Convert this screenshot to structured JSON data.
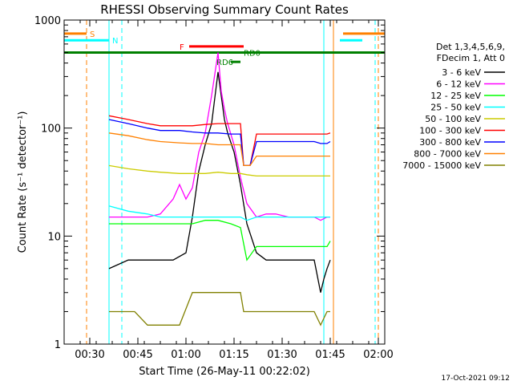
{
  "chart_data": {
    "type": "line",
    "title": "RHESSI Observing Summary Count Rates",
    "xlabel": "Start Time (26-May-11 00:22:02)",
    "ylabel": "Count Rate (s⁻¹ detector⁻¹)",
    "ylog": true,
    "ylim": [
      1,
      1000
    ],
    "xlim_minutes_after_00_22_02": [
      0,
      100
    ],
    "x_ticks": [
      "00:30",
      "00:45",
      "01:00",
      "01:15",
      "01:30",
      "01:45",
      "02:00"
    ],
    "x_tick_minutes": [
      8,
      23,
      38,
      53,
      68,
      83,
      98
    ],
    "y_ticks": [
      "1",
      "10",
      "100",
      "1000"
    ],
    "y_tick_values": [
      1,
      10,
      100,
      1000
    ],
    "legend_header": [
      "Det 1,3,4,5,6,9,",
      "FDecim 1, Att 0"
    ],
    "series": [
      {
        "name": "3 - 6 keV",
        "color": "#000000",
        "x": [
          14,
          20,
          26,
          30,
          34,
          38,
          40,
          42,
          44,
          46,
          48,
          50,
          51,
          53,
          55,
          57,
          60,
          63,
          66,
          70,
          74,
          78,
          80,
          81,
          82,
          83
        ],
        "y": [
          5,
          6,
          6,
          6,
          6,
          7,
          15,
          40,
          70,
          110,
          330,
          120,
          90,
          60,
          30,
          13,
          7,
          6,
          6,
          6,
          6,
          6,
          3,
          4,
          5,
          6
        ]
      },
      {
        "name": "6 - 12 keV",
        "color": "#ff00ff",
        "x": [
          14,
          20,
          26,
          30,
          34,
          36,
          38,
          40,
          42,
          44,
          46,
          48,
          49,
          50,
          51,
          53,
          55,
          57,
          60,
          63,
          66,
          70,
          74,
          78,
          80,
          82,
          83
        ],
        "y": [
          15,
          15,
          15,
          16,
          22,
          30,
          22,
          28,
          60,
          90,
          200,
          500,
          220,
          150,
          110,
          70,
          35,
          20,
          15,
          16,
          16,
          15,
          15,
          15,
          14,
          15,
          15
        ]
      },
      {
        "name": "12 - 25 keV",
        "color": "#00ff00",
        "x": [
          14,
          20,
          26,
          30,
          36,
          40,
          44,
          48,
          52,
          55,
          57,
          60,
          66,
          72,
          78,
          80,
          82,
          83
        ],
        "y": [
          13,
          13,
          13,
          13,
          13,
          13,
          14,
          14,
          13,
          12,
          6,
          8,
          8,
          8,
          8,
          8,
          8,
          9
        ]
      },
      {
        "name": "25 - 50 keV",
        "color": "#00ffff",
        "x": [
          14,
          20,
          26,
          30,
          36,
          40,
          44,
          48,
          52,
          55,
          57,
          60,
          66,
          72,
          78,
          80,
          82,
          83
        ],
        "y": [
          19,
          17,
          16,
          15,
          15,
          15,
          15,
          15,
          15,
          15,
          14,
          15,
          15,
          15,
          15,
          15,
          15,
          15
        ]
      },
      {
        "name": "50 - 100 keV",
        "color": "#cccc00",
        "x": [
          14,
          20,
          26,
          30,
          36,
          40,
          44,
          48,
          52,
          55,
          57,
          60,
          66,
          72,
          78,
          80,
          82,
          83
        ],
        "y": [
          45,
          42,
          40,
          39,
          38,
          38,
          38,
          39,
          38,
          38,
          37,
          36,
          36,
          36,
          36,
          36,
          36,
          36
        ]
      },
      {
        "name": "100 - 300 keV",
        "color": "#ff0000",
        "x": [
          14,
          20,
          26,
          30,
          36,
          40,
          44,
          48,
          52,
          55,
          56,
          58,
          60,
          66,
          72,
          78,
          80,
          82,
          83
        ],
        "y": [
          130,
          120,
          110,
          105,
          105,
          105,
          108,
          110,
          110,
          110,
          45,
          45,
          88,
          88,
          88,
          88,
          88,
          88,
          90
        ]
      },
      {
        "name": "300 - 800 keV",
        "color": "#0000ff",
        "x": [
          14,
          20,
          26,
          30,
          36,
          40,
          44,
          48,
          52,
          55,
          56,
          58,
          60,
          66,
          72,
          78,
          80,
          82,
          83
        ],
        "y": [
          120,
          110,
          100,
          95,
          95,
          92,
          90,
          90,
          88,
          88,
          45,
          45,
          75,
          75,
          75,
          75,
          72,
          72,
          75
        ]
      },
      {
        "name": "800 - 7000 keV",
        "color": "#ff8000",
        "x": [
          14,
          20,
          26,
          30,
          36,
          40,
          44,
          48,
          52,
          55,
          56,
          58,
          60,
          66,
          72,
          78,
          80,
          82,
          83
        ],
        "y": [
          90,
          85,
          78,
          75,
          73,
          72,
          72,
          70,
          70,
          70,
          45,
          45,
          55,
          55,
          55,
          55,
          55,
          55,
          55
        ]
      },
      {
        "name": "7000 - 15000 keV",
        "color": "#808000",
        "x": [
          14,
          18,
          22,
          26,
          30,
          36,
          40,
          44,
          48,
          52,
          55,
          56,
          58,
          62,
          66,
          72,
          78,
          80,
          82,
          83
        ],
        "y": [
          2,
          2,
          2,
          1.5,
          1.5,
          1.5,
          3,
          3,
          3,
          3,
          3,
          2,
          2,
          2,
          2,
          2,
          2,
          1.5,
          2,
          2
        ]
      }
    ],
    "attenuator_bars": [
      {
        "label": "S",
        "color": "#ff8000",
        "x_start": 0,
        "x_end": 7,
        "y": 750
      },
      {
        "label": "N",
        "color": "#00ffff",
        "x_start": 0,
        "x_end": 14,
        "y": 650
      },
      {
        "label": "F",
        "color": "#ff0000",
        "x_start": 39,
        "x_end": 56,
        "y": 570
      },
      {
        "label": "RD0",
        "color": "#008000",
        "x_start": 0,
        "x_end": 100,
        "y": 500
      },
      {
        "label": "RD6",
        "color": "#008000",
        "x_start": 52,
        "x_end": 55,
        "y": 410
      },
      {
        "label": "",
        "color": "#00ffff",
        "x_start": 86,
        "x_end": 93,
        "y": 650
      },
      {
        "label": "",
        "color": "#ff8000",
        "x_start": 87,
        "x_end": 100,
        "y": 750
      }
    ],
    "vertical_markers": [
      {
        "x": 7,
        "color": "#ff8000",
        "dashed": true
      },
      {
        "x": 14,
        "color": "#00ffff",
        "dashed": false
      },
      {
        "x": 18,
        "color": "#00ffff",
        "dashed": true
      },
      {
        "x": 81,
        "color": "#00ffff",
        "dashed": false
      },
      {
        "x": 84,
        "color": "#ff8000",
        "dashed": false
      },
      {
        "x": 97,
        "color": "#00ffff",
        "dashed": true
      },
      {
        "x": 98,
        "color": "#ff8000",
        "dashed": true
      }
    ],
    "grid": false,
    "legend_position": "right",
    "timestamp": "17-Oct-2021 09:12"
  }
}
